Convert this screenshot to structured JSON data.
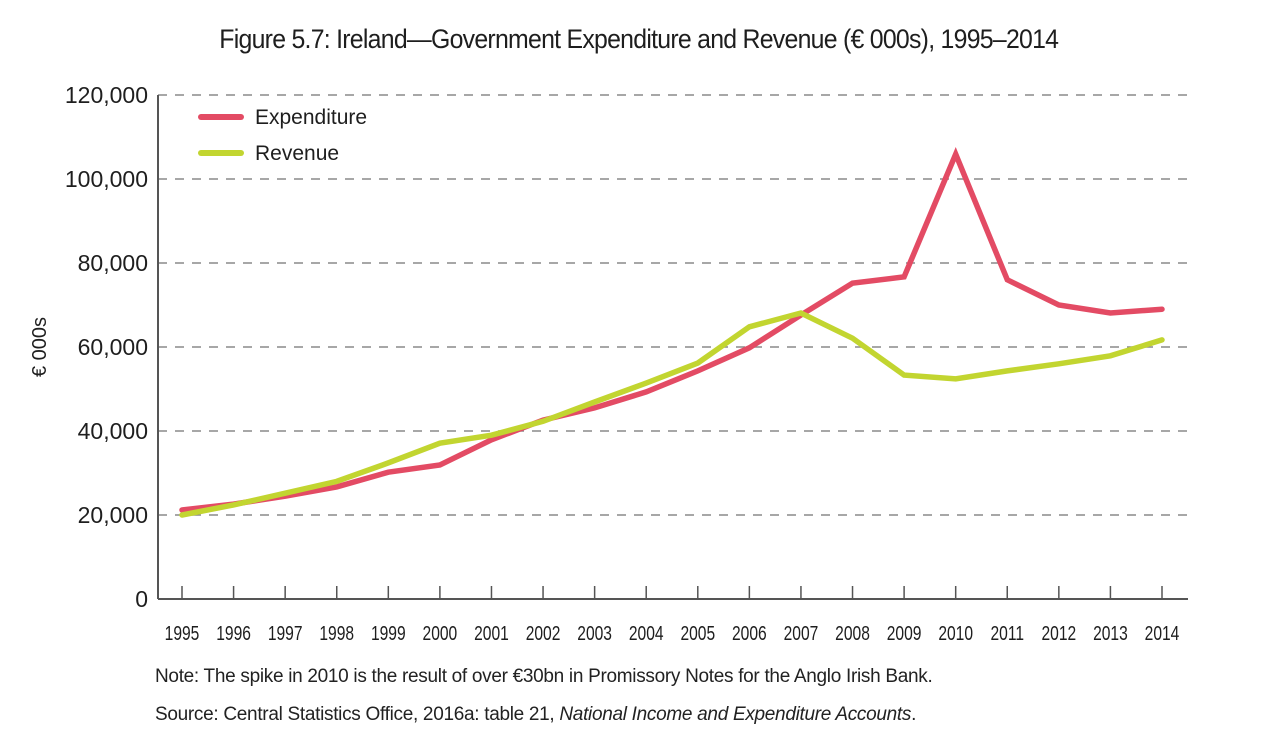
{
  "chart_data": {
    "type": "line",
    "title": "Figure 5.7: Ireland—Government Expenditure and Revenue (€ 000s), 1995–2014",
    "xlabel": "",
    "ylabel": "€ 000s",
    "ylim": [
      0,
      120000
    ],
    "yticks": [
      0,
      20000,
      40000,
      60000,
      80000,
      100000,
      120000
    ],
    "ytick_labels": [
      "0",
      "20,000",
      "40,000",
      "60,000",
      "80,000",
      "100,000",
      "120,000"
    ],
    "grid": "horizontal dashed",
    "legend_position": "top-left",
    "x": [
      "1995",
      "1996",
      "1997",
      "1998",
      "1999",
      "2000",
      "2001",
      "2002",
      "2003",
      "2004",
      "2005",
      "2006",
      "2007",
      "2008",
      "2009",
      "2010",
      "2011",
      "2012",
      "2013",
      "2014"
    ],
    "series": [
      {
        "name": "Expenditure",
        "color": "#e34b64",
        "values": [
          21200,
          22600,
          24500,
          26700,
          30200,
          31900,
          37900,
          42600,
          45500,
          49300,
          54300,
          59800,
          67600,
          75200,
          76700,
          105900,
          76000,
          70000,
          68100,
          69000
        ]
      },
      {
        "name": "Revenue",
        "color": "#c2d530",
        "values": [
          20000,
          22400,
          25200,
          28000,
          32400,
          37100,
          39000,
          42300,
          46900,
          51400,
          56200,
          64800,
          68100,
          62100,
          53300,
          52400,
          54300,
          56000,
          57900,
          61700
        ]
      }
    ]
  },
  "notes": {
    "note": "Note: The spike in 2010 is the result of over €30bn in Promissory Notes for the Anglo Irish Bank.",
    "source_prefix": "Source: Central Statistics Office, 2016a: table 21, ",
    "source_italic": "National Income and Expenditure Accounts",
    "source_suffix": "."
  }
}
